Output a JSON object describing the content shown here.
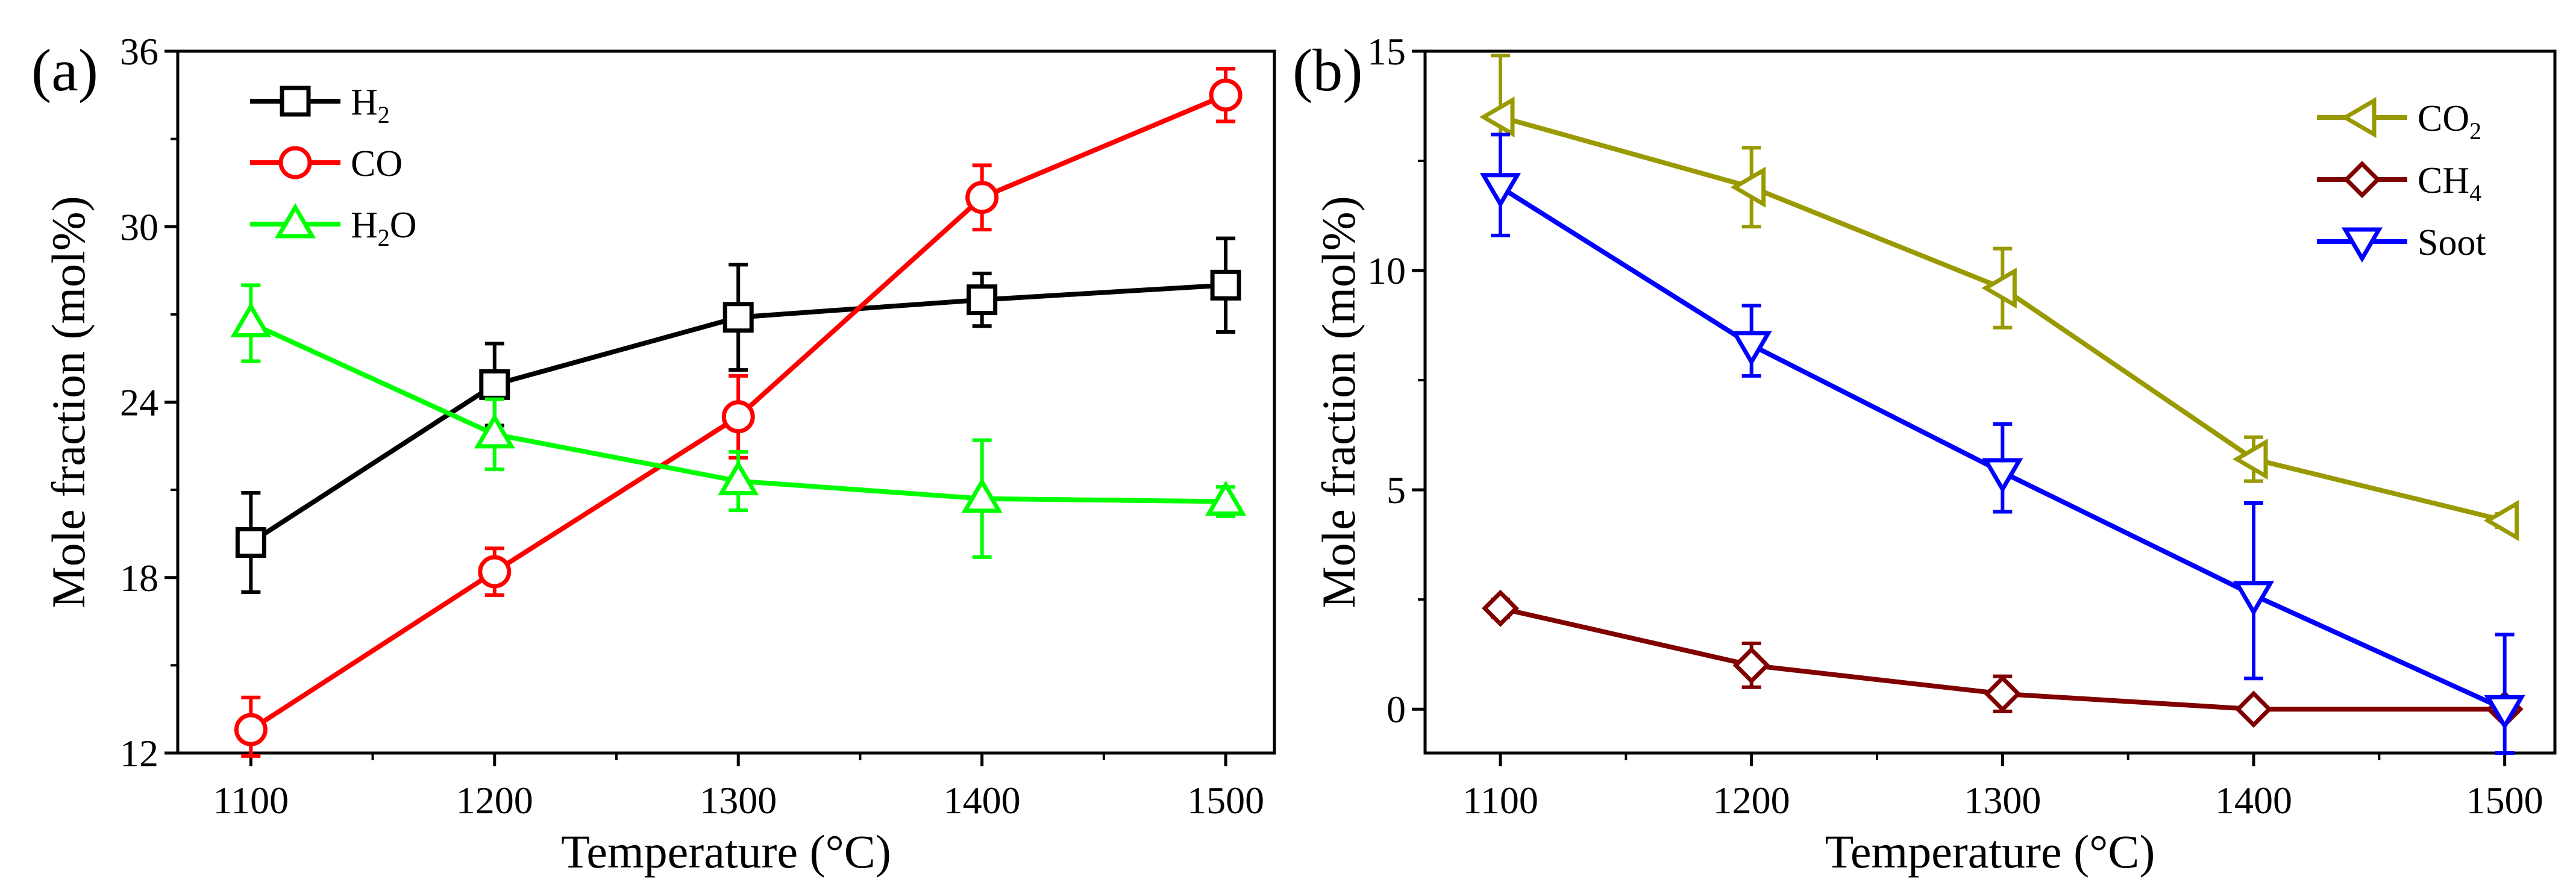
{
  "chart_data": [
    {
      "type": "line",
      "panel_label": "(a)",
      "xlabel": "Temperature (°C)",
      "ylabel": "Mole fraction (mol%)",
      "x": [
        1100,
        1200,
        1300,
        1400,
        1500
      ],
      "x_tick_labels": [
        "1100",
        "1200",
        "1300",
        "1400",
        "1500"
      ],
      "xlim": [
        1070,
        1520
      ],
      "ylim": [
        12,
        36
      ],
      "y_ticks": [
        12,
        18,
        24,
        30,
        36
      ],
      "y_tick_labels": [
        "12",
        "18",
        "24",
        "30",
        "36"
      ],
      "y_minor_ticks": [
        15,
        21,
        27,
        33
      ],
      "grid": false,
      "legend_position": "top-left",
      "series": [
        {
          "name": "H2",
          "label_main": "H",
          "label_sub": "2",
          "label_tail": "",
          "color": "#000000",
          "marker": "square",
          "values": [
            19.2,
            24.6,
            26.9,
            27.5,
            28.0
          ],
          "err_up": [
            1.7,
            1.4,
            1.8,
            0.9,
            1.6
          ],
          "err_down": [
            1.7,
            1.4,
            1.8,
            0.9,
            1.6
          ]
        },
        {
          "name": "CO",
          "label_main": "CO",
          "label_sub": "",
          "label_tail": "",
          "color": "#ff0000",
          "marker": "circle",
          "values": [
            12.8,
            18.2,
            23.5,
            31.0,
            34.5
          ],
          "err_up": [
            1.1,
            0.8,
            1.4,
            1.1,
            0.9
          ],
          "err_down": [
            0.9,
            0.8,
            1.4,
            1.1,
            0.9
          ]
        },
        {
          "name": "H2O",
          "label_main": "H",
          "label_sub": "2",
          "label_tail": "O",
          "color": "#00ff00",
          "marker": "triangle-up",
          "values": [
            26.7,
            22.9,
            21.3,
            20.7,
            20.6
          ],
          "err_up": [
            1.3,
            1.2,
            1.0,
            2.0,
            0.5
          ],
          "err_down": [
            1.3,
            1.2,
            1.0,
            2.0,
            0.5
          ]
        }
      ]
    },
    {
      "type": "line",
      "panel_label": "(b)",
      "xlabel": "Temperature (°C)",
      "ylabel": "Mole fraction (mol%)",
      "x": [
        1100,
        1200,
        1300,
        1400,
        1500
      ],
      "x_tick_labels": [
        "1100",
        "1200",
        "1300",
        "1400",
        "1500"
      ],
      "xlim": [
        1070,
        1520
      ],
      "ylim": [
        -1,
        15
      ],
      "y_ticks": [
        0,
        5,
        10,
        15
      ],
      "y_tick_labels": [
        "0",
        "5",
        "10",
        "15"
      ],
      "y_minor_ticks": [
        2.5,
        7.5,
        12.5
      ],
      "grid": false,
      "legend_position": "top-right",
      "series": [
        {
          "name": "CO2",
          "label_main": "CO",
          "label_sub": "2",
          "label_tail": "",
          "color": "#999900",
          "marker": "triangle-left",
          "values": [
            13.5,
            11.9,
            9.6,
            5.7,
            4.3
          ],
          "err_up": [
            1.4,
            0.9,
            0.9,
            0.5,
            0.15
          ],
          "err_down": [
            1.4,
            0.9,
            0.9,
            0.5,
            0.15
          ]
        },
        {
          "name": "CH4",
          "label_main": "CH",
          "label_sub": "4",
          "label_tail": "",
          "color": "#800000",
          "marker": "diamond",
          "values": [
            2.3,
            1.0,
            0.35,
            0.0,
            0.0
          ],
          "err_up": [
            0.2,
            0.5,
            0.4,
            0.0,
            0.0
          ],
          "err_down": [
            0.2,
            0.5,
            0.4,
            0.0,
            0.0
          ]
        },
        {
          "name": "Soot",
          "label_main": "Soot",
          "label_sub": "",
          "label_tail": "",
          "color": "#0000ff",
          "marker": "triangle-down",
          "values": [
            11.9,
            8.3,
            5.4,
            2.6,
            0.0
          ],
          "err_up": [
            1.2,
            0.9,
            1.1,
            2.1,
            1.7
          ],
          "err_down": [
            1.1,
            0.7,
            0.9,
            1.9,
            1.0
          ]
        }
      ]
    }
  ]
}
